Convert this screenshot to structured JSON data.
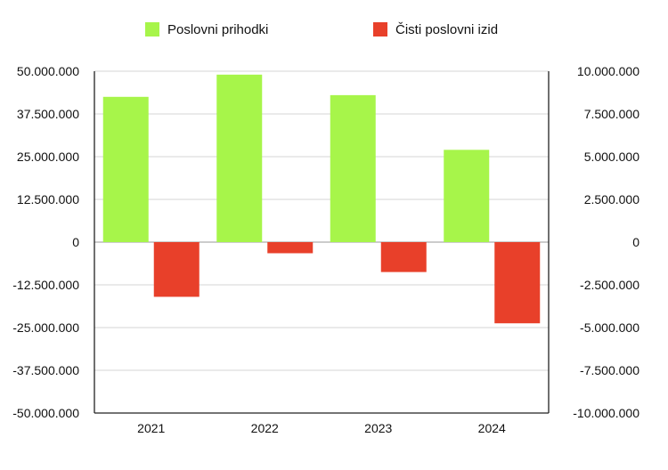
{
  "chart_data": {
    "type": "bar",
    "categories": [
      "2021",
      "2022",
      "2023",
      "2024"
    ],
    "series": [
      {
        "name": "Poslovni prihodki",
        "axis": "left",
        "color": "#a7f54a",
        "values": [
          42500000,
          49000000,
          43000000,
          27000000
        ]
      },
      {
        "name": "Čisti poslovni izid",
        "axis": "right",
        "color": "#e8402a",
        "values": [
          -3200000,
          -650000,
          -1750000,
          -4750000
        ]
      }
    ],
    "y_left": {
      "lim": [
        -50000000,
        50000000
      ],
      "ticks": [
        50000000,
        37500000,
        25000000,
        12500000,
        0,
        -12500000,
        -25000000,
        -37500000,
        -50000000
      ],
      "tick_labels": [
        "50.000.000",
        "37.500.000",
        "25.000.000",
        "12.500.000",
        "0",
        "-12.500.000",
        "-25.000.000",
        "-37.500.000",
        "-50.000.000"
      ]
    },
    "y_right": {
      "lim": [
        -10000000,
        10000000
      ],
      "ticks": [
        10000000,
        7500000,
        5000000,
        2500000,
        0,
        -2500000,
        -5000000,
        -7500000,
        -10000000
      ],
      "tick_labels": [
        "10.000.000",
        "7.500.000",
        "5.000.000",
        "2.500.000",
        "0",
        "-2.500.000",
        "-5.000.000",
        "-7.500.000",
        "-10.000.000"
      ]
    },
    "grid": true,
    "legend": {
      "position": "top"
    }
  }
}
